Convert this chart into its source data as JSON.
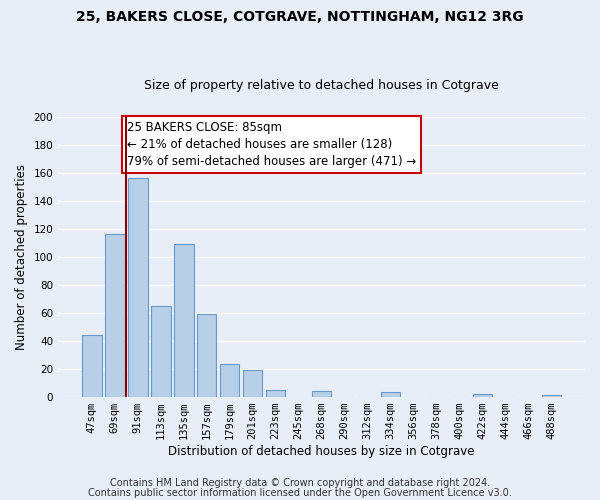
{
  "title": "25, BAKERS CLOSE, COTGRAVE, NOTTINGHAM, NG12 3RG",
  "subtitle": "Size of property relative to detached houses in Cotgrave",
  "xlabel": "Distribution of detached houses by size in Cotgrave",
  "ylabel": "Number of detached properties",
  "bar_labels": [
    "47sqm",
    "69sqm",
    "91sqm",
    "113sqm",
    "135sqm",
    "157sqm",
    "179sqm",
    "201sqm",
    "223sqm",
    "245sqm",
    "268sqm",
    "290sqm",
    "312sqm",
    "334sqm",
    "356sqm",
    "378sqm",
    "400sqm",
    "422sqm",
    "444sqm",
    "466sqm",
    "488sqm"
  ],
  "bar_values": [
    44,
    116,
    156,
    65,
    109,
    59,
    23,
    19,
    5,
    0,
    4,
    0,
    0,
    3,
    0,
    0,
    0,
    2,
    0,
    0,
    1
  ],
  "bar_color": "#b8cfe8",
  "bar_edge_color": "#6699cc",
  "highlight_line_color": "#880000",
  "ylim": [
    0,
    200
  ],
  "yticks": [
    0,
    20,
    40,
    60,
    80,
    100,
    120,
    140,
    160,
    180,
    200
  ],
  "annotation_title": "25 BAKERS CLOSE: 85sqm",
  "annotation_line1": "← 21% of detached houses are smaller (128)",
  "annotation_line2": "79% of semi-detached houses are larger (471) →",
  "annotation_box_color": "#ffffff",
  "annotation_box_edge": "#cc0000",
  "footer_line1": "Contains HM Land Registry data © Crown copyright and database right 2024.",
  "footer_line2": "Contains public sector information licensed under the Open Government Licence v3.0.",
  "background_color": "#e8eef8",
  "grid_color": "#ffffff",
  "title_fontsize": 10,
  "subtitle_fontsize": 9,
  "annotation_fontsize": 8.5,
  "footer_fontsize": 7,
  "axis_label_fontsize": 8.5,
  "tick_fontsize": 7.5
}
